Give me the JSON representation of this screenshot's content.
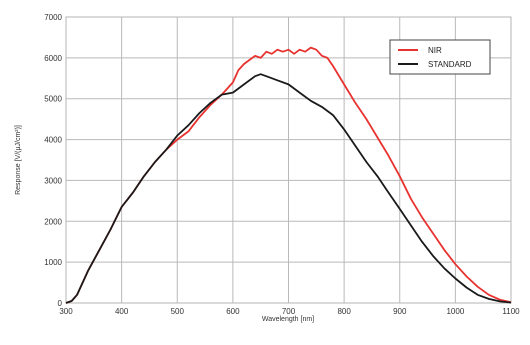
{
  "chart_data": {
    "type": "line",
    "xlabel": "Wavelength [nm]",
    "ylabel": "Response [V/(µJ/cm²)]",
    "xlim": [
      300,
      1100
    ],
    "ylim": [
      0,
      7000
    ],
    "xticks": [
      "300",
      "400",
      "500",
      "600",
      "700",
      "800",
      "900",
      "1000",
      "1100"
    ],
    "yticks": [
      "0",
      "1000",
      "2000",
      "3000",
      "4000",
      "5000",
      "6000",
      "7000"
    ],
    "grid": true,
    "legend": "top-right",
    "series": [
      {
        "name": "NIR",
        "color": "#e8322f",
        "points": [
          [
            300,
            0
          ],
          [
            310,
            50
          ],
          [
            320,
            200
          ],
          [
            340,
            800
          ],
          [
            360,
            1300
          ],
          [
            380,
            1800
          ],
          [
            400,
            2350
          ],
          [
            420,
            2700
          ],
          [
            440,
            3100
          ],
          [
            460,
            3450
          ],
          [
            480,
            3750
          ],
          [
            500,
            4000
          ],
          [
            520,
            4200
          ],
          [
            540,
            4550
          ],
          [
            560,
            4850
          ],
          [
            580,
            5100
          ],
          [
            600,
            5400
          ],
          [
            610,
            5700
          ],
          [
            620,
            5850
          ],
          [
            630,
            5950
          ],
          [
            640,
            6050
          ],
          [
            650,
            6000
          ],
          [
            660,
            6150
          ],
          [
            670,
            6100
          ],
          [
            680,
            6200
          ],
          [
            690,
            6150
          ],
          [
            700,
            6200
          ],
          [
            710,
            6100
          ],
          [
            720,
            6200
          ],
          [
            730,
            6150
          ],
          [
            740,
            6250
          ],
          [
            750,
            6200
          ],
          [
            760,
            6050
          ],
          [
            770,
            6000
          ],
          [
            780,
            5800
          ],
          [
            800,
            5350
          ],
          [
            820,
            4900
          ],
          [
            840,
            4500
          ],
          [
            860,
            4050
          ],
          [
            880,
            3600
          ],
          [
            900,
            3100
          ],
          [
            920,
            2550
          ],
          [
            940,
            2100
          ],
          [
            960,
            1700
          ],
          [
            980,
            1300
          ],
          [
            1000,
            950
          ],
          [
            1020,
            650
          ],
          [
            1040,
            400
          ],
          [
            1060,
            200
          ],
          [
            1080,
            80
          ],
          [
            1100,
            20
          ]
        ]
      },
      {
        "name": "STANDARD",
        "color": "#1a1a1a",
        "points": [
          [
            300,
            0
          ],
          [
            310,
            50
          ],
          [
            320,
            200
          ],
          [
            340,
            800
          ],
          [
            360,
            1300
          ],
          [
            380,
            1800
          ],
          [
            400,
            2350
          ],
          [
            420,
            2700
          ],
          [
            440,
            3100
          ],
          [
            460,
            3450
          ],
          [
            480,
            3750
          ],
          [
            500,
            4100
          ],
          [
            520,
            4350
          ],
          [
            540,
            4650
          ],
          [
            560,
            4900
          ],
          [
            580,
            5100
          ],
          [
            600,
            5150
          ],
          [
            620,
            5350
          ],
          [
            640,
            5550
          ],
          [
            650,
            5600
          ],
          [
            660,
            5550
          ],
          [
            680,
            5450
          ],
          [
            700,
            5350
          ],
          [
            720,
            5150
          ],
          [
            740,
            4950
          ],
          [
            760,
            4800
          ],
          [
            780,
            4600
          ],
          [
            800,
            4250
          ],
          [
            820,
            3850
          ],
          [
            840,
            3450
          ],
          [
            860,
            3100
          ],
          [
            880,
            2700
          ],
          [
            900,
            2300
          ],
          [
            920,
            1900
          ],
          [
            940,
            1500
          ],
          [
            960,
            1150
          ],
          [
            980,
            850
          ],
          [
            1000,
            600
          ],
          [
            1020,
            380
          ],
          [
            1040,
            200
          ],
          [
            1060,
            100
          ],
          [
            1080,
            40
          ],
          [
            1100,
            10
          ]
        ]
      }
    ]
  }
}
